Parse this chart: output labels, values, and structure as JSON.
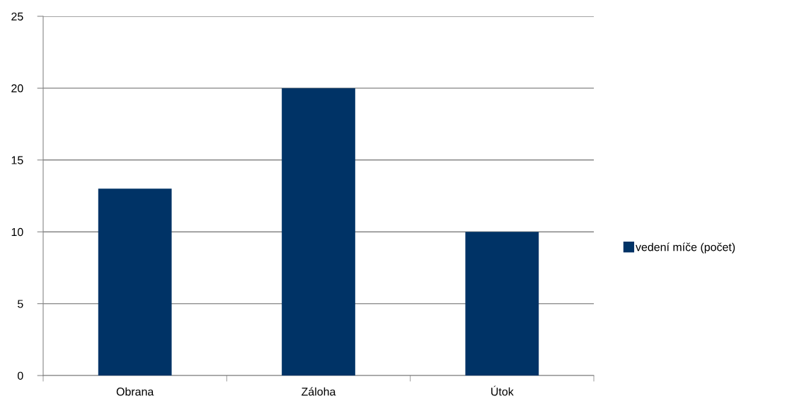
{
  "chart_data": {
    "type": "bar",
    "categories": [
      "Obrana",
      "Záloha",
      "Útok"
    ],
    "series": [
      {
        "name": "vedení míče (počet)",
        "color": "#003366",
        "values": [
          13,
          20,
          10
        ]
      }
    ],
    "ylim": [
      0,
      25
    ],
    "yticks": [
      0,
      5,
      10,
      15,
      20,
      25
    ],
    "grid": "y",
    "legend": "right"
  }
}
